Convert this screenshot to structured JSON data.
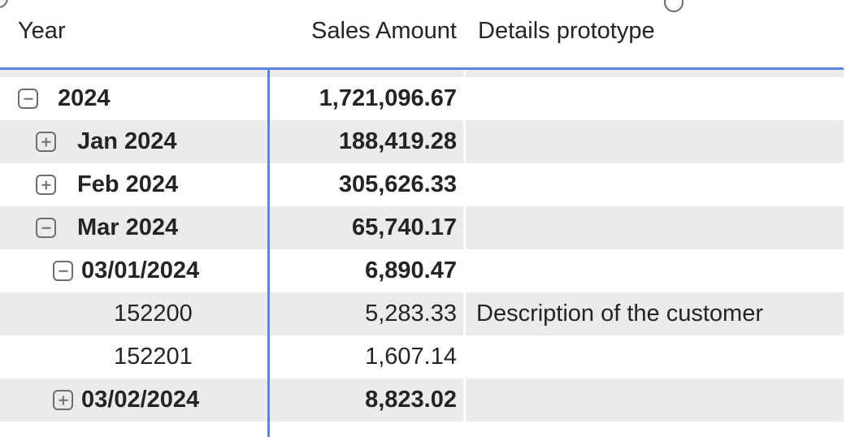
{
  "visual": {
    "type": "matrix",
    "state": "selected"
  },
  "colors": {
    "accent_border": "#5c85e2",
    "zebra_row": "#ebebeb",
    "text": "#252423",
    "toggle_icon": "#6e6e6e",
    "handle_border": "#6a6a6a"
  },
  "icons": {
    "collapse": "minus-square-icon",
    "expand": "plus-square-icon",
    "handles": "selection-handle-circle"
  },
  "columns": [
    {
      "label": "Year",
      "align": "left"
    },
    {
      "label": "Sales Amount",
      "align": "right"
    },
    {
      "label": "Details prototype",
      "align": "left"
    }
  ],
  "rows": [
    {
      "label": "2024",
      "sales": "1,721,096.67",
      "details": "",
      "level": 0,
      "toggle": "collapse",
      "emphasis": "bold",
      "zebra": false
    },
    {
      "label": "Jan 2024",
      "sales": "188,419.28",
      "details": "",
      "level": 1,
      "toggle": "expand",
      "emphasis": "bold",
      "zebra": true
    },
    {
      "label": "Feb 2024",
      "sales": "305,626.33",
      "details": "",
      "level": 1,
      "toggle": "expand",
      "emphasis": "bold",
      "zebra": false
    },
    {
      "label": "Mar 2024",
      "sales": "65,740.17",
      "details": "",
      "level": 1,
      "toggle": "collapse",
      "emphasis": "bold",
      "zebra": true
    },
    {
      "label": "03/01/2024",
      "sales": "6,890.47",
      "details": "",
      "level": 2,
      "toggle": "collapse",
      "emphasis": "bold",
      "zebra": false
    },
    {
      "label": "152200",
      "sales": "5,283.33",
      "details": "Description of the customer",
      "level": 3,
      "toggle": null,
      "emphasis": "regular",
      "zebra": true
    },
    {
      "label": "152201",
      "sales": "1,607.14",
      "details": "",
      "level": 3,
      "toggle": null,
      "emphasis": "regular",
      "zebra": false
    },
    {
      "label": "03/02/2024",
      "sales": "8,823.02",
      "details": "",
      "level": 2,
      "toggle": "expand",
      "emphasis": "bold",
      "zebra": true
    }
  ]
}
